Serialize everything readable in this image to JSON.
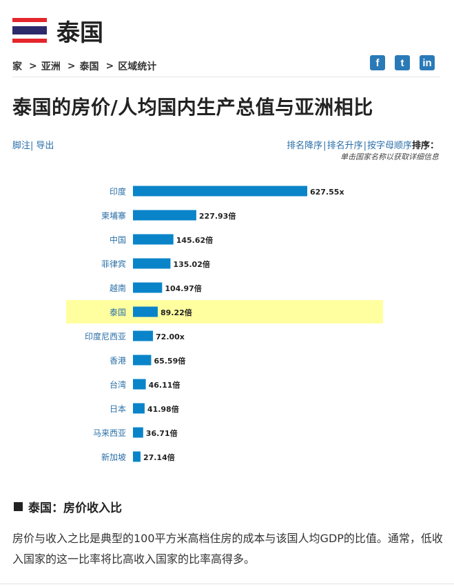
{
  "header": {
    "country_name": "泰国",
    "flag_icon": "thailand-flag-icon",
    "flag_colors": {
      "red": "#e4262c",
      "white": "#ffffff",
      "blue": "#2d2a6c"
    }
  },
  "breadcrumb": {
    "items": [
      "家",
      "亚洲",
      "泰国",
      "区域统计"
    ],
    "separator": ">"
  },
  "social": {
    "facebook_icon": "facebook-icon",
    "twitter_icon": "twitter-icon",
    "linkedin_icon": "linkedin-icon",
    "color": "#2a7ab8",
    "facebook_glyph": "f",
    "twitter_glyph": "t",
    "linkedin_glyph": "in"
  },
  "page_title": "泰国的房价/人均国内生产总值与亚洲相比",
  "links": {
    "footnote": "脚注",
    "export": "导出"
  },
  "sort": {
    "desc": "排名降序",
    "asc": "排名升序",
    "alpha": "按字母顺序",
    "label": "排序：",
    "hint": "单击国家名称以获取详细信息"
  },
  "chart_data": {
    "type": "bar",
    "orientation": "horizontal",
    "categories": [
      "印度",
      "柬埔寨",
      "中国",
      "菲律宾",
      "越南",
      "泰国",
      "印度尼西亚",
      "香港",
      "台湾",
      "日本",
      "马来西亚",
      "新加坡"
    ],
    "values": [
      627.55,
      227.93,
      145.62,
      135.02,
      104.97,
      89.22,
      72.0,
      65.59,
      46.11,
      41.98,
      36.71,
      27.14
    ],
    "value_labels": [
      "627.55x",
      "227.93倍",
      "145.62倍",
      "135.02倍",
      "104.97倍",
      "89.22倍",
      "72.00x",
      "65.59倍",
      "46.11倍",
      "41.98倍",
      "36.71倍",
      "27.14倍"
    ],
    "highlight": "泰国",
    "bar_color": "#0a84c9",
    "highlight_color": "#ffffa0",
    "grid": false
  },
  "section": {
    "heading": "泰国：房价收入比"
  },
  "description": "房价与收入之比是典型的100平方米高档住房的成本与该国人均GDP的比值。通常，低收入国家的这一比率将比高收入国家的比率高得多。"
}
